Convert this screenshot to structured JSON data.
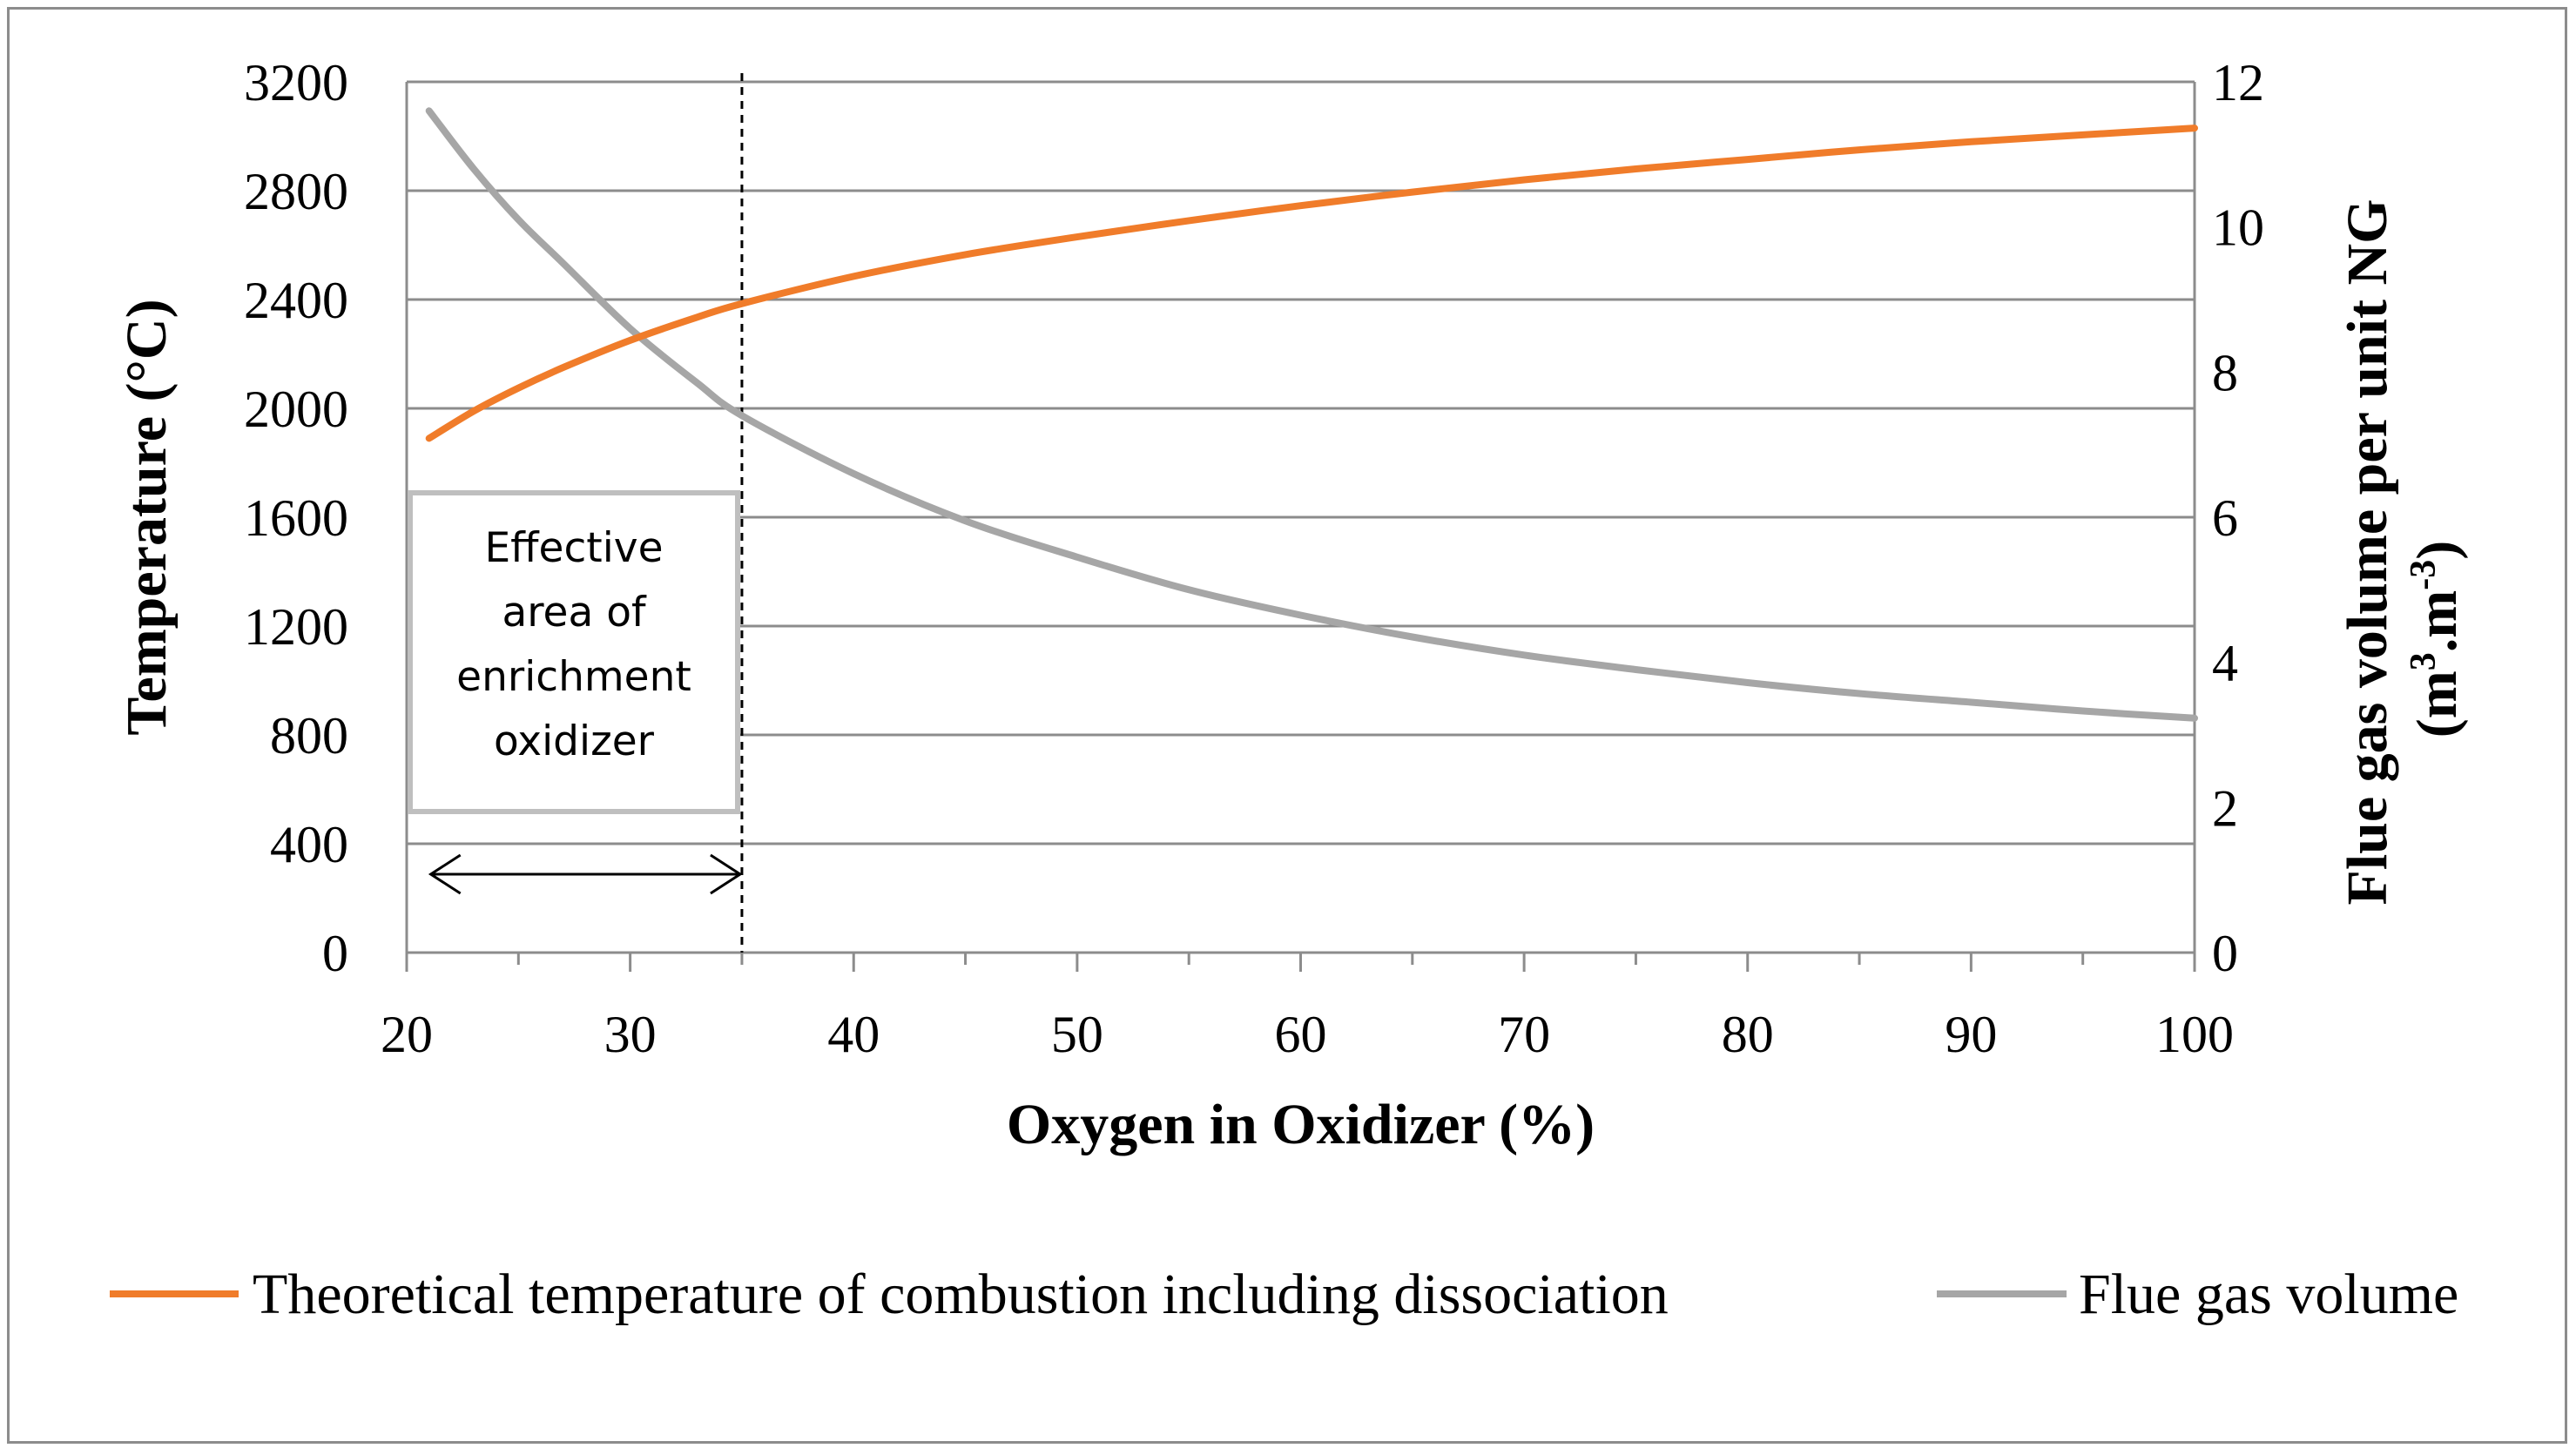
{
  "chart_data": {
    "type": "line",
    "x_axis": {
      "label": "Oxygen in Oxidizer (%)",
      "range": [
        20,
        100
      ],
      "ticks": [
        "20",
        "30",
        "40",
        "50",
        "60",
        "70",
        "80",
        "90",
        "100"
      ]
    },
    "y_axis_left": {
      "label": "Temperature (°C)",
      "range": [
        0,
        3200
      ],
      "ticks": [
        "0",
        "400",
        "800",
        "1200",
        "1600",
        "2000",
        "2400",
        "2800",
        "3200"
      ]
    },
    "y_axis_right": {
      "label_line1": "Flue gas volume per unit NG",
      "label_line2_prefix": "(m",
      "label_sup1": "3",
      "label_mid": ".m",
      "label_sup2": "-3",
      "label_suffix": ")",
      "range": [
        0,
        12
      ],
      "ticks": [
        "0",
        "2",
        "4",
        "6",
        "8",
        "10",
        "12"
      ]
    },
    "series": [
      {
        "name": "Theoretical temperature of combustion including dissociation",
        "color": "#f07c2a",
        "axis": "left",
        "x": [
          21,
          23,
          25,
          27,
          30,
          33,
          35,
          40,
          45,
          50,
          55,
          60,
          65,
          70,
          75,
          80,
          85,
          90,
          95,
          100
        ],
        "y": [
          1890,
          1990,
          2075,
          2150,
          2250,
          2335,
          2385,
          2485,
          2565,
          2630,
          2690,
          2745,
          2795,
          2840,
          2880,
          2915,
          2950,
          2980,
          3005,
          3030
        ]
      },
      {
        "name": "Flue gas volume",
        "color": "#a6a6a6",
        "axis": "right",
        "x": [
          21,
          23,
          25,
          27,
          30,
          33,
          35,
          40,
          45,
          50,
          55,
          60,
          65,
          70,
          75,
          80,
          85,
          90,
          95,
          100
        ],
        "y": [
          11.6,
          10.8,
          10.1,
          9.5,
          8.6,
          7.85,
          7.4,
          6.6,
          5.95,
          5.45,
          5.0,
          4.65,
          4.35,
          4.1,
          3.9,
          3.72,
          3.57,
          3.45,
          3.33,
          3.23
        ]
      }
    ],
    "reference_line": {
      "x": 35,
      "style": "dashed"
    },
    "annotation": {
      "lines": [
        "Effective",
        "area of",
        "enrichment",
        "oxidizer"
      ],
      "arrow_from_x": 21,
      "arrow_to_x": 35
    },
    "grid": true,
    "legend_position": "bottom"
  }
}
